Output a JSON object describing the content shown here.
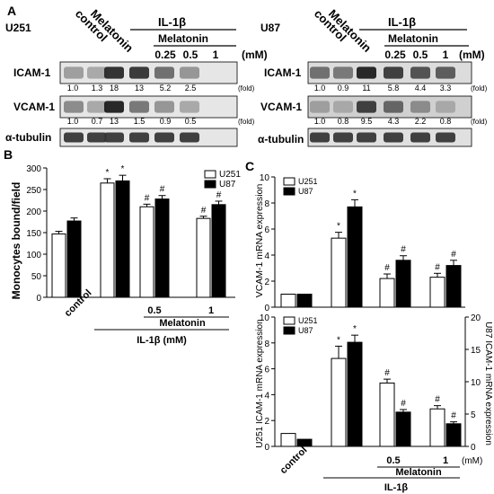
{
  "panels": {
    "a": "A",
    "b": "B",
    "c": "C"
  },
  "blot": {
    "symbols": {
      "beta": "β",
      "alpha": "α"
    },
    "header": {
      "melatonin": "Melatonin",
      "control": "control",
      "il1b": "IL-1",
      "mel": "Melatonin",
      "unit": "(mM)",
      "fold": "(fold)",
      "conc": [
        "0.25",
        "0.5",
        "1"
      ]
    },
    "left": {
      "cell": "U251",
      "rows": [
        {
          "label": "ICAM-1",
          "values": [
            "1.0",
            "1.3",
            "18",
            "13",
            "5.2",
            "2.5"
          ],
          "intensity": [
            0.35,
            0.3,
            0.92,
            0.88,
            0.6,
            0.4
          ]
        },
        {
          "label": "VCAM-1",
          "values": [
            "1.0",
            "0.7",
            "13",
            "1.5",
            "0.9",
            "0.5"
          ],
          "intensity": [
            0.45,
            0.3,
            0.98,
            0.55,
            0.4,
            0.3
          ]
        },
        {
          "label": "-tubulin",
          "values": [],
          "intensity": [
            0.85,
            0.85,
            0.85,
            0.85,
            0.85,
            0.85
          ]
        }
      ]
    },
    "right": {
      "cell": "U87",
      "rows": [
        {
          "label": "ICAM-1",
          "values": [
            "1.0",
            "0.9",
            "11",
            "5.8",
            "4.4",
            "3.3"
          ],
          "intensity": [
            0.6,
            0.55,
            0.98,
            0.85,
            0.75,
            0.7
          ]
        },
        {
          "label": "VCAM-1",
          "values": [
            "1.0",
            "0.8",
            "9.5",
            "4.3",
            "2.2",
            "0.8"
          ],
          "intensity": [
            0.35,
            0.3,
            0.85,
            0.65,
            0.45,
            0.3
          ]
        },
        {
          "label": "-tubulin",
          "values": [],
          "intensity": [
            0.85,
            0.85,
            0.85,
            0.85,
            0.85,
            0.85
          ]
        }
      ]
    }
  },
  "chart_data": [
    {
      "type": "bar",
      "panel": "B",
      "ylabel": "Monocytes bound/field",
      "ylim": [
        0,
        300
      ],
      "yticks": [
        "0",
        "50",
        "100",
        "150",
        "200",
        "250",
        "300"
      ],
      "series": [
        {
          "name": "U251",
          "values": [
            147,
            265,
            210,
            183
          ],
          "errors": [
            6,
            10,
            6,
            5
          ],
          "stars": [
            "",
            "*",
            "#",
            "#"
          ],
          "color": "#ffffff"
        },
        {
          "name": "U87",
          "values": [
            177,
            270,
            228,
            215
          ],
          "errors": [
            7,
            13,
            8,
            8
          ],
          "stars": [
            "",
            "*",
            "#",
            "#"
          ],
          "color": "#000000"
        }
      ],
      "xaxis": {
        "control": "control",
        "conc": [
          "0.5",
          "1"
        ],
        "melatonin": "Melatonin",
        "il1b": "IL-1β (mM)"
      },
      "legend": "top-right"
    },
    {
      "type": "bar",
      "panel": "C-top",
      "ylabel": "VCAM-1 mRNA expression",
      "ylim": [
        0,
        10
      ],
      "yticks": [
        "0",
        "2",
        "4",
        "6",
        "8",
        "10"
      ],
      "series": [
        {
          "name": "U251",
          "values": [
            1.0,
            5.3,
            2.2,
            2.3
          ],
          "errors": [
            0,
            0.45,
            0.35,
            0.3
          ],
          "stars": [
            "",
            "*",
            "#",
            "#"
          ],
          "color": "#ffffff"
        },
        {
          "name": "U87",
          "values": [
            1.0,
            7.7,
            3.6,
            3.2
          ],
          "errors": [
            0,
            0.55,
            0.35,
            0.4
          ],
          "stars": [
            "",
            "*",
            "#",
            "#"
          ],
          "color": "#000000"
        }
      ],
      "legend": "top-left"
    },
    {
      "type": "bar",
      "panel": "C-bottom",
      "ylabel": "U251 ICAM-1 mRNA expression",
      "ylabel_right": "U87 ICAM-1 mRNA expression",
      "ylim": [
        0,
        10
      ],
      "ylim_right": [
        0,
        20
      ],
      "yticks": [
        "0",
        "2",
        "4",
        "6",
        "8",
        "10"
      ],
      "yticks_right": [
        "0",
        "5",
        "10",
        "15",
        "20"
      ],
      "series": [
        {
          "name": "U251",
          "axis": "left",
          "values": [
            1.0,
            6.8,
            4.9,
            2.9
          ],
          "errors": [
            0,
            0.95,
            0.3,
            0.25
          ],
          "stars": [
            "",
            "*",
            "#",
            "#"
          ],
          "color": "#ffffff"
        },
        {
          "name": "U87",
          "axis": "right",
          "values": [
            1.1,
            16.1,
            5.3,
            3.5
          ],
          "errors": [
            0,
            1.1,
            0.4,
            0.3
          ],
          "stars": [
            "",
            "*",
            "#",
            "#"
          ],
          "color": "#000000"
        }
      ],
      "xaxis": {
        "control": "control",
        "conc": [
          "0.5",
          "1"
        ],
        "unit": "(mM)",
        "melatonin": "Melatonin",
        "il1b": "IL-1β"
      },
      "legend": "top-left"
    }
  ]
}
